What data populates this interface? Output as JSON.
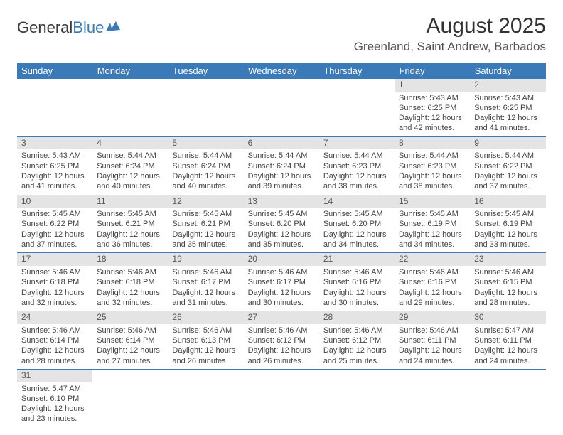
{
  "header": {
    "logo_text1": "General",
    "logo_text2": "Blue",
    "month_title": "August 2025",
    "location": "Greenland, Saint Andrew, Barbados"
  },
  "colors": {
    "header_bg": "#3a7ab8",
    "header_text": "#ffffff",
    "daynum_bg": "#e4e4e4",
    "border": "#3a7ab8",
    "logo_blue": "#3a7ab8",
    "body_text": "#444444"
  },
  "day_headers": [
    "Sunday",
    "Monday",
    "Tuesday",
    "Wednesday",
    "Thursday",
    "Friday",
    "Saturday"
  ],
  "days": [
    {
      "n": "1",
      "sr": "5:43 AM",
      "ss": "6:25 PM",
      "dl": "12 hours and 42 minutes."
    },
    {
      "n": "2",
      "sr": "5:43 AM",
      "ss": "6:25 PM",
      "dl": "12 hours and 41 minutes."
    },
    {
      "n": "3",
      "sr": "5:43 AM",
      "ss": "6:25 PM",
      "dl": "12 hours and 41 minutes."
    },
    {
      "n": "4",
      "sr": "5:44 AM",
      "ss": "6:24 PM",
      "dl": "12 hours and 40 minutes."
    },
    {
      "n": "5",
      "sr": "5:44 AM",
      "ss": "6:24 PM",
      "dl": "12 hours and 40 minutes."
    },
    {
      "n": "6",
      "sr": "5:44 AM",
      "ss": "6:24 PM",
      "dl": "12 hours and 39 minutes."
    },
    {
      "n": "7",
      "sr": "5:44 AM",
      "ss": "6:23 PM",
      "dl": "12 hours and 38 minutes."
    },
    {
      "n": "8",
      "sr": "5:44 AM",
      "ss": "6:23 PM",
      "dl": "12 hours and 38 minutes."
    },
    {
      "n": "9",
      "sr": "5:44 AM",
      "ss": "6:22 PM",
      "dl": "12 hours and 37 minutes."
    },
    {
      "n": "10",
      "sr": "5:45 AM",
      "ss": "6:22 PM",
      "dl": "12 hours and 37 minutes."
    },
    {
      "n": "11",
      "sr": "5:45 AM",
      "ss": "6:21 PM",
      "dl": "12 hours and 36 minutes."
    },
    {
      "n": "12",
      "sr": "5:45 AM",
      "ss": "6:21 PM",
      "dl": "12 hours and 35 minutes."
    },
    {
      "n": "13",
      "sr": "5:45 AM",
      "ss": "6:20 PM",
      "dl": "12 hours and 35 minutes."
    },
    {
      "n": "14",
      "sr": "5:45 AM",
      "ss": "6:20 PM",
      "dl": "12 hours and 34 minutes."
    },
    {
      "n": "15",
      "sr": "5:45 AM",
      "ss": "6:19 PM",
      "dl": "12 hours and 34 minutes."
    },
    {
      "n": "16",
      "sr": "5:45 AM",
      "ss": "6:19 PM",
      "dl": "12 hours and 33 minutes."
    },
    {
      "n": "17",
      "sr": "5:46 AM",
      "ss": "6:18 PM",
      "dl": "12 hours and 32 minutes."
    },
    {
      "n": "18",
      "sr": "5:46 AM",
      "ss": "6:18 PM",
      "dl": "12 hours and 32 minutes."
    },
    {
      "n": "19",
      "sr": "5:46 AM",
      "ss": "6:17 PM",
      "dl": "12 hours and 31 minutes."
    },
    {
      "n": "20",
      "sr": "5:46 AM",
      "ss": "6:17 PM",
      "dl": "12 hours and 30 minutes."
    },
    {
      "n": "21",
      "sr": "5:46 AM",
      "ss": "6:16 PM",
      "dl": "12 hours and 30 minutes."
    },
    {
      "n": "22",
      "sr": "5:46 AM",
      "ss": "6:16 PM",
      "dl": "12 hours and 29 minutes."
    },
    {
      "n": "23",
      "sr": "5:46 AM",
      "ss": "6:15 PM",
      "dl": "12 hours and 28 minutes."
    },
    {
      "n": "24",
      "sr": "5:46 AM",
      "ss": "6:14 PM",
      "dl": "12 hours and 28 minutes."
    },
    {
      "n": "25",
      "sr": "5:46 AM",
      "ss": "6:14 PM",
      "dl": "12 hours and 27 minutes."
    },
    {
      "n": "26",
      "sr": "5:46 AM",
      "ss": "6:13 PM",
      "dl": "12 hours and 26 minutes."
    },
    {
      "n": "27",
      "sr": "5:46 AM",
      "ss": "6:12 PM",
      "dl": "12 hours and 26 minutes."
    },
    {
      "n": "28",
      "sr": "5:46 AM",
      "ss": "6:12 PM",
      "dl": "12 hours and 25 minutes."
    },
    {
      "n": "29",
      "sr": "5:46 AM",
      "ss": "6:11 PM",
      "dl": "12 hours and 24 minutes."
    },
    {
      "n": "30",
      "sr": "5:47 AM",
      "ss": "6:11 PM",
      "dl": "12 hours and 24 minutes."
    },
    {
      "n": "31",
      "sr": "5:47 AM",
      "ss": "6:10 PM",
      "dl": "12 hours and 23 minutes."
    }
  ],
  "labels": {
    "sunrise": "Sunrise: ",
    "sunset": "Sunset: ",
    "daylight": "Daylight: "
  },
  "layout": {
    "first_day_column": 5,
    "total_columns": 7,
    "font_size_cell": 11,
    "font_size_header": 13
  }
}
